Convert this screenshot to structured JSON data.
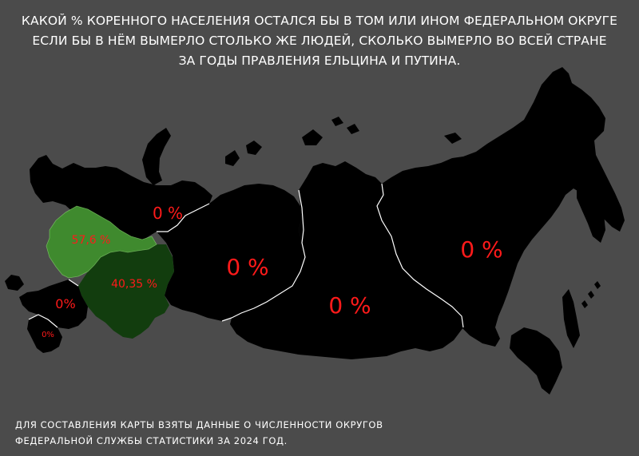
{
  "title": {
    "line1": "КАКОЙ % КОРЕННОГО НАСЕЛЕНИЯ ОСТАЛСЯ БЫ В ТОМ ИЛИ ИНОМ ФЕДЕРАЛЬНОМ ОКРУГЕ",
    "line2": "ЕСЛИ БЫ В НЁМ ВЫМЕРЛО СТОЛЬКО ЖЕ ЛЮДЕЙ, СКОЛЬКО ВЫМЕРЛО ВО ВСЕЙ СТРАНЕ",
    "line3": "ЗА ГОДЫ ПРАВЛЕНИЯ ЕЛЬЦИНА И ПУТИНА."
  },
  "regions": {
    "northwest": "0 %",
    "central": "57,6 %",
    "volga": "40,35 %",
    "south": "0%",
    "north_caucasus": "0%",
    "ural": "0 %",
    "siberia": "0 %",
    "far_east": "0 %"
  },
  "footer": {
    "line1": "ДЛЯ СОСТАВЛЕНИЯ КАРТЫ ВЗЯТЫ ДАННЫЕ О ЧИСЛЕННОСТИ ОКРУГОВ",
    "line2": "ФЕДЕРАЛЬНОЙ СЛУЖБЫ СТАТИСТИКИ ЗА 2024 ГОД."
  },
  "colors": {
    "background": "#4b4b4b",
    "land": "#000000",
    "central_fill": "#3f8a2e",
    "volga_fill": "#123d0e",
    "label_red": "#ff1a1a",
    "border": "#ffffff"
  }
}
